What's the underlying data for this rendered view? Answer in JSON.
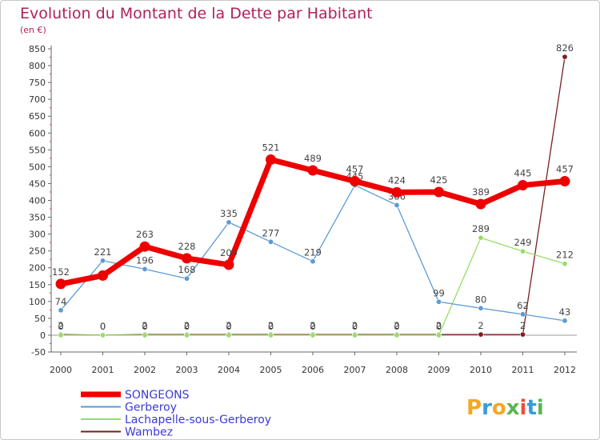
{
  "chart_data": {
    "type": "line",
    "title": "Evolution du Montant de la Dette par Habitant",
    "subtitle": "(en €)",
    "x": [
      "2000",
      "2001",
      "2002",
      "2003",
      "2004",
      "2005",
      "2006",
      "2007",
      "2008",
      "2009",
      "2010",
      "2011",
      "2012"
    ],
    "ylim": [
      -50,
      850
    ],
    "yticks": [
      -50,
      0,
      50,
      100,
      150,
      200,
      250,
      300,
      350,
      400,
      450,
      500,
      550,
      600,
      650,
      700,
      750,
      800,
      850
    ],
    "grid": false,
    "legend_position": "bottom-left",
    "series": [
      {
        "name": "SONGEONS",
        "color": "#ee0000",
        "emphasis": true,
        "values": [
          152,
          177,
          263,
          228,
          209,
          521,
          489,
          457,
          424,
          425,
          389,
          445,
          457
        ],
        "labels": [
          "152",
          "",
          "263",
          "228",
          "209",
          "521",
          "489",
          "457",
          "424",
          "425",
          "389",
          "445",
          "457"
        ]
      },
      {
        "name": "Gerberoy",
        "color": "#5b9bd5",
        "values": [
          74,
          221,
          196,
          168,
          335,
          277,
          219,
          445,
          386,
          99,
          80,
          62,
          43
        ],
        "labels": [
          "74",
          "221",
          "196",
          "168",
          "335",
          "277",
          "219",
          "445",
          "386",
          "99",
          "80",
          "62",
          "43"
        ]
      },
      {
        "name": "Lachapelle-sous-Gerberoy",
        "color": "#99dd66",
        "values": [
          0,
          0,
          0,
          0,
          0,
          0,
          0,
          0,
          0,
          0,
          289,
          249,
          212
        ],
        "labels": [
          "0",
          "0",
          "0",
          "0",
          "0",
          "0",
          "0",
          "0",
          "0",
          "0",
          "289",
          "249",
          "212"
        ]
      },
      {
        "name": "Wambez",
        "color": "#7a1f1f",
        "values": [
          2,
          0,
          2,
          2,
          2,
          2,
          2,
          2,
          2,
          2,
          2,
          2,
          826
        ],
        "labels": [
          "2",
          "0",
          "2",
          "2",
          "2",
          "2",
          "2",
          "2",
          "2",
          "2",
          "2",
          "2",
          "826"
        ]
      }
    ]
  },
  "logo": {
    "text": "Proxiti"
  }
}
